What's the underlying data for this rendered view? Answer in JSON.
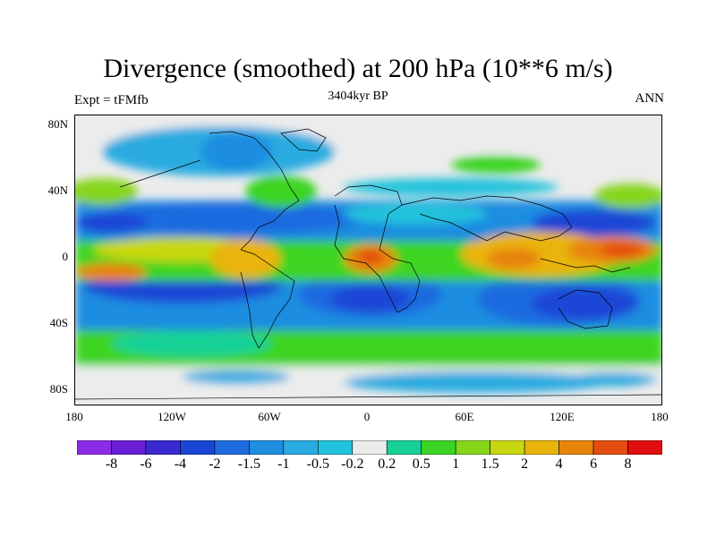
{
  "title": "Divergence (smoothed) at 200 hPa (10**6 m/s)",
  "left_subtitle": "Expt = tFMfb",
  "center_subtitle": "3404kyr BP",
  "right_subtitle": "ANN",
  "lat_labels": [
    "80N",
    "40N",
    "0",
    "40S",
    "80S"
  ],
  "lon_labels": [
    "180",
    "120W",
    "60W",
    "0",
    "60E",
    "120E",
    "180"
  ],
  "colorbar": {
    "labels": [
      "-8",
      "-6",
      "-4",
      "-2",
      "-1.5",
      "-1",
      "-0.5",
      "-0.2",
      "0.2",
      "0.5",
      "1",
      "1.5",
      "2",
      "4",
      "6",
      "8"
    ],
    "colors": [
      "#8c2be6",
      "#6a1fd6",
      "#3a28d0",
      "#1a46d6",
      "#1f6be0",
      "#1f8de0",
      "#29abe0",
      "#22c2dc",
      "#ececec",
      "#18d196",
      "#3cd424",
      "#86d61c",
      "#c8d810",
      "#e8b40c",
      "#e8840c",
      "#e44c10",
      "#e00e0e"
    ]
  }
}
